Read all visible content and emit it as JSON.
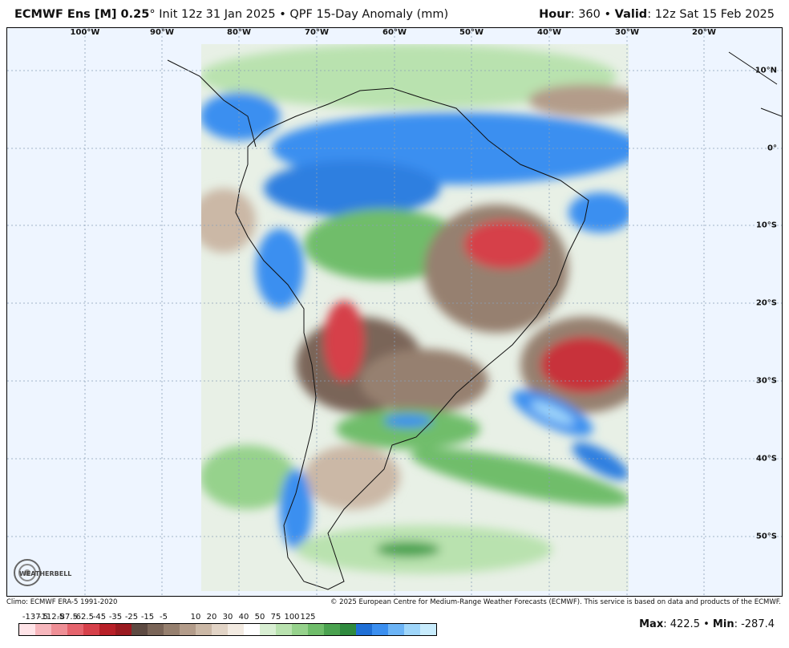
{
  "header": {
    "model": "ECMWF Ens [M] 0.25",
    "degree": "°",
    "init": "Init 12z 31 Jan 2025",
    "bullet": "•",
    "product": "QPF 15-Day Anomaly (mm)",
    "hour_label": "Hour",
    "hour_value": ": 360",
    "valid_label": "Valid",
    "valid_value": ": 12z Sat 15 Feb 2025"
  },
  "map": {
    "longitude_labels": [
      "100°W",
      "90°W",
      "80°W",
      "70°W",
      "60°W",
      "50°W",
      "40°W",
      "30°W",
      "20°W"
    ],
    "latitude_labels": [
      "10°N",
      "0°",
      "10°S",
      "20°S",
      "30°S",
      "40°S",
      "50°S"
    ],
    "land_color": "#f4f4f4",
    "ocean_color": "#eef5ff"
  },
  "footer": {
    "climo": "Climo: ECMWF ERA-5 1991-2020",
    "copyright": "© 2025 European Centre for Medium-Range Weather Forecasts (ECMWF). This service is based on data and products of the ECMWF."
  },
  "colorbar": {
    "labels": [
      "-137.5",
      "-112.5",
      "-87.5",
      "-62.5",
      "-45",
      "-35",
      "-25",
      "-15",
      "-5",
      "10",
      "20",
      "30",
      "40",
      "50",
      "75",
      "100",
      "125"
    ],
    "colors": [
      "#ffe4e8",
      "#f7b7bd",
      "#ef8f96",
      "#e5646d",
      "#d6404a",
      "#b82028",
      "#9a1a20",
      "#5d4a42",
      "#7a6558",
      "#96806f",
      "#b39c8a",
      "#cbb8a6",
      "#e2d4c6",
      "#f3ebe2",
      "#ffffff",
      "#d9efd3",
      "#b9e2af",
      "#96d28c",
      "#6fbd6a",
      "#4aa24f",
      "#2f8a3e",
      "#1f6fd6",
      "#3b8ff0",
      "#6cb4f6",
      "#9fd6fa",
      "#c8ecfd"
    ]
  },
  "stats": {
    "max_label": "Max",
    "max_value": ": 422.5",
    "min_label": "Min",
    "min_value": ": -287.4"
  },
  "logo_text": "WEATHERBELL"
}
